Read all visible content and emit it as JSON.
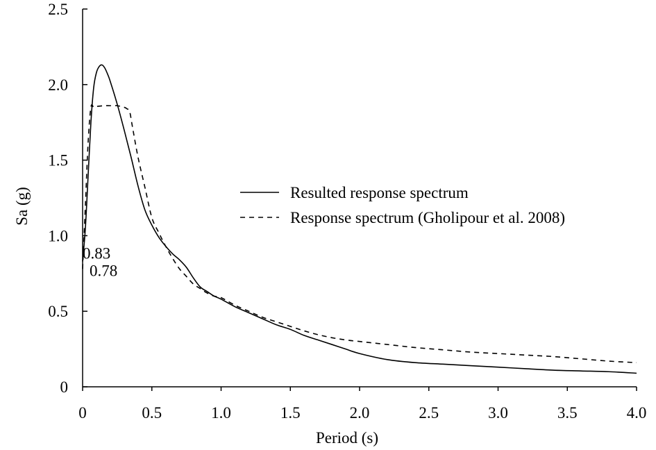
{
  "chart_data": {
    "type": "line",
    "xlabel": "Period (s)",
    "ylabel": "Sa (g)",
    "xlim": [
      0,
      4.0
    ],
    "ylim": [
      0,
      2.5
    ],
    "xticks": [
      "0",
      "0.5",
      "1.0",
      "1.5",
      "2.0",
      "2.5",
      "3.0",
      "3.5",
      "4.0"
    ],
    "xtick_values": [
      0,
      0.5,
      1.0,
      1.5,
      2.0,
      2.5,
      3.0,
      3.5,
      4.0
    ],
    "yticks": [
      "0",
      "0.5",
      "1.0",
      "1.5",
      "2.0",
      "2.5"
    ],
    "ytick_values": [
      0,
      0.5,
      1.0,
      1.5,
      2.0,
      2.5
    ],
    "grid": false,
    "legend_position": "center-right",
    "annotations": [
      {
        "text": "0.83",
        "x": 0.0,
        "y": 0.83
      },
      {
        "text": "0.78",
        "x": 0.0,
        "y": 0.78
      }
    ],
    "series": [
      {
        "name": "Resulted response spectrum",
        "style": "solid",
        "color": "#000000",
        "x": [
          0.0,
          0.02,
          0.04,
          0.06,
          0.08,
          0.1,
          0.12,
          0.14,
          0.16,
          0.18,
          0.2,
          0.25,
          0.3,
          0.35,
          0.4,
          0.45,
          0.5,
          0.55,
          0.6,
          0.65,
          0.7,
          0.75,
          0.8,
          0.85,
          0.9,
          0.95,
          1.0,
          1.1,
          1.2,
          1.3,
          1.4,
          1.5,
          1.6,
          1.7,
          1.8,
          1.9,
          2.0,
          2.2,
          2.4,
          2.6,
          2.8,
          3.0,
          3.2,
          3.4,
          3.6,
          3.8,
          4.0
        ],
        "y": [
          0.83,
          1.05,
          1.4,
          1.75,
          1.98,
          2.08,
          2.12,
          2.13,
          2.11,
          2.07,
          2.02,
          1.87,
          1.7,
          1.52,
          1.33,
          1.17,
          1.07,
          0.99,
          0.93,
          0.88,
          0.84,
          0.79,
          0.72,
          0.66,
          0.63,
          0.6,
          0.58,
          0.53,
          0.49,
          0.45,
          0.41,
          0.38,
          0.34,
          0.31,
          0.28,
          0.25,
          0.22,
          0.18,
          0.16,
          0.15,
          0.14,
          0.13,
          0.12,
          0.11,
          0.105,
          0.1,
          0.09
        ]
      },
      {
        "name": "Response spectrum (Gholipour et al. 2008)",
        "style": "dashed",
        "color": "#000000",
        "x": [
          0.0,
          0.02,
          0.04,
          0.06,
          0.08,
          0.1,
          0.15,
          0.2,
          0.25,
          0.3,
          0.32,
          0.34,
          0.36,
          0.4,
          0.45,
          0.5,
          0.55,
          0.6,
          0.65,
          0.7,
          0.75,
          0.8,
          0.85,
          0.9,
          0.95,
          1.0,
          1.1,
          1.2,
          1.3,
          1.4,
          1.5,
          1.6,
          1.7,
          1.8,
          1.9,
          2.0,
          2.2,
          2.4,
          2.6,
          2.8,
          3.0,
          3.2,
          3.4,
          3.6,
          3.8,
          4.0
        ],
        "y": [
          0.78,
          1.2,
          1.62,
          1.85,
          1.85,
          1.855,
          1.86,
          1.86,
          1.86,
          1.85,
          1.84,
          1.82,
          1.72,
          1.52,
          1.32,
          1.12,
          1.02,
          0.93,
          0.85,
          0.78,
          0.73,
          0.68,
          0.65,
          0.62,
          0.6,
          0.59,
          0.54,
          0.5,
          0.46,
          0.43,
          0.4,
          0.37,
          0.345,
          0.325,
          0.31,
          0.3,
          0.28,
          0.26,
          0.245,
          0.23,
          0.22,
          0.21,
          0.2,
          0.185,
          0.17,
          0.16
        ]
      }
    ]
  }
}
